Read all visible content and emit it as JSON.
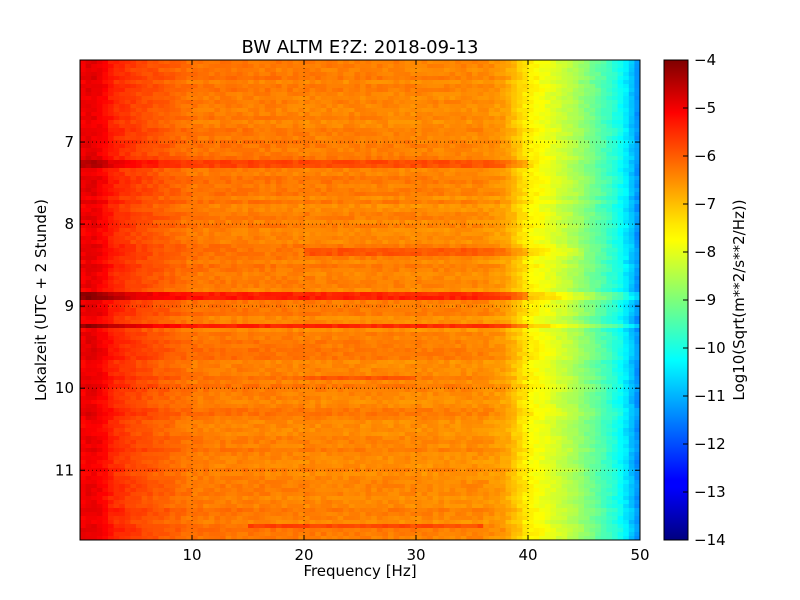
{
  "chart_data": {
    "type": "heatmap",
    "title": "BW ALTM E?Z: 2018-09-13",
    "xlabel": "Frequency [Hz]",
    "ylabel": "Lokalzeit (UTC + 2 Stunde)",
    "xlim": [
      0,
      50
    ],
    "ylim": [
      6.0,
      11.85
    ],
    "y_inverted": true,
    "x_ticks": [
      10,
      20,
      30,
      40,
      50
    ],
    "y_ticks": [
      7,
      8,
      9,
      10,
      11
    ],
    "grid": true,
    "grid_style": "dotted",
    "colormap": "jet",
    "colorbar": {
      "label": "Log10(Sqrt(m**2/s**2/Hz))",
      "range": [
        -14,
        -4
      ],
      "ticks": [
        -4,
        -5,
        -6,
        -7,
        -8,
        -9,
        -10,
        -11,
        -12,
        -13,
        -14
      ]
    },
    "spectrum_profile": [
      {
        "freq": 0.0,
        "level": -5.2
      },
      {
        "freq": 1.0,
        "level": -5.0
      },
      {
        "freq": 2.0,
        "level": -5.2
      },
      {
        "freq": 3.0,
        "level": -5.6
      },
      {
        "freq": 5.0,
        "level": -5.9
      },
      {
        "freq": 8.0,
        "level": -6.2
      },
      {
        "freq": 10.0,
        "level": -6.4
      },
      {
        "freq": 20.0,
        "level": -6.5
      },
      {
        "freq": 30.0,
        "level": -6.55
      },
      {
        "freq": 36.0,
        "level": -6.6
      },
      {
        "freq": 38.0,
        "level": -6.8
      },
      {
        "freq": 40.0,
        "level": -7.6
      },
      {
        "freq": 42.0,
        "level": -8.0
      },
      {
        "freq": 44.0,
        "level": -8.5
      },
      {
        "freq": 46.0,
        "level": -9.2
      },
      {
        "freq": 48.0,
        "level": -10.0
      },
      {
        "freq": 49.0,
        "level": -10.6
      },
      {
        "freq": 50.0,
        "level": -11.5
      }
    ],
    "bands": [
      {
        "time": 7.26,
        "level_offset": 0.6,
        "freq_range": [
          0,
          41
        ]
      },
      {
        "time": 8.35,
        "level_offset": 0.4,
        "freq_range": [
          20,
          45
        ]
      },
      {
        "time": 8.88,
        "level_offset": 0.9,
        "freq_range": [
          0,
          50
        ]
      },
      {
        "time": 9.25,
        "level_offset": 0.8,
        "freq_range": [
          0,
          50
        ]
      },
      {
        "time": 9.88,
        "level_offset": 0.35,
        "freq_range": [
          20,
          30
        ]
      },
      {
        "time": 11.68,
        "level_offset": 0.5,
        "freq_range": [
          15,
          36
        ]
      }
    ]
  }
}
